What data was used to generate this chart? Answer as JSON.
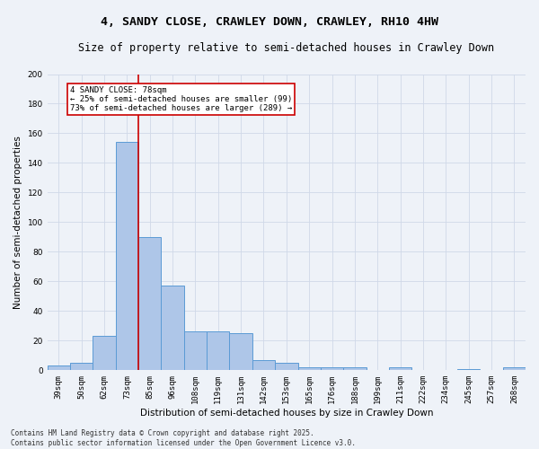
{
  "title": "4, SANDY CLOSE, CRAWLEY DOWN, CRAWLEY, RH10 4HW",
  "subtitle": "Size of property relative to semi-detached houses in Crawley Down",
  "xlabel": "Distribution of semi-detached houses by size in Crawley Down",
  "ylabel": "Number of semi-detached properties",
  "categories": [
    "39sqm",
    "50sqm",
    "62sqm",
    "73sqm",
    "85sqm",
    "96sqm",
    "108sqm",
    "119sqm",
    "131sqm",
    "142sqm",
    "153sqm",
    "165sqm",
    "176sqm",
    "188sqm",
    "199sqm",
    "211sqm",
    "222sqm",
    "234sqm",
    "245sqm",
    "257sqm",
    "268sqm"
  ],
  "values": [
    3,
    5,
    23,
    154,
    90,
    57,
    26,
    26,
    25,
    7,
    5,
    2,
    2,
    2,
    0,
    2,
    0,
    0,
    1,
    0,
    2
  ],
  "bar_color": "#aec6e8",
  "bar_edge_color": "#5b9bd5",
  "vline_index": 3.5,
  "highlight_label": "4 SANDY CLOSE: 78sqm",
  "annotation_smaller": "← 25% of semi-detached houses are smaller (99)",
  "annotation_larger": "73% of semi-detached houses are larger (289) →",
  "annotation_box_color": "#ffffff",
  "annotation_box_edge": "#cc0000",
  "vline_color": "#cc0000",
  "grid_color": "#d0d8e8",
  "background_color": "#eef2f8",
  "footer": "Contains HM Land Registry data © Crown copyright and database right 2025.\nContains public sector information licensed under the Open Government Licence v3.0.",
  "ylim": [
    0,
    200
  ],
  "yticks": [
    0,
    20,
    40,
    60,
    80,
    100,
    120,
    140,
    160,
    180,
    200
  ],
  "title_fontsize": 9.5,
  "subtitle_fontsize": 8.5,
  "axis_label_fontsize": 7.5,
  "tick_fontsize": 6.5,
  "annotation_fontsize": 6.5,
  "footer_fontsize": 5.5
}
